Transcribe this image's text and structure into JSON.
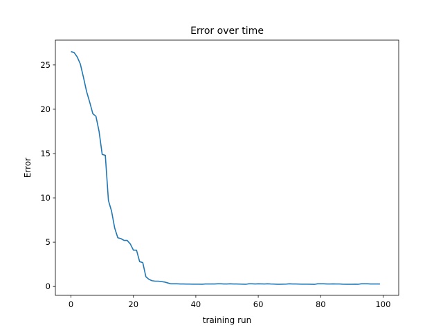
{
  "chart_data": {
    "type": "line",
    "title": "Error over time",
    "xlabel": "training run",
    "ylabel": "Error",
    "xlim": [
      -5,
      105
    ],
    "ylim": [
      -1.0,
      27.8
    ],
    "xticks": [
      0,
      20,
      40,
      60,
      80,
      100
    ],
    "yticks": [
      0,
      5,
      10,
      15,
      20,
      25
    ],
    "grid": false,
    "line_color": "#1f77b4",
    "series": [
      {
        "x": [
          0,
          1,
          2,
          3,
          4,
          5,
          6,
          7,
          8,
          9,
          10,
          11,
          12,
          13,
          14,
          15,
          16,
          17,
          18,
          19,
          20,
          21,
          22,
          23,
          24,
          25,
          26,
          27,
          28,
          29,
          30,
          31,
          32,
          33,
          34,
          35,
          36,
          37,
          38,
          39,
          40,
          41,
          42,
          43,
          44,
          45,
          46,
          47,
          48,
          49,
          50,
          51,
          52,
          53,
          54,
          55,
          56,
          57,
          58,
          59,
          60,
          61,
          62,
          63,
          64,
          65,
          66,
          67,
          68,
          69,
          70,
          71,
          72,
          73,
          74,
          75,
          76,
          77,
          78,
          79,
          80,
          81,
          82,
          83,
          84,
          85,
          86,
          87,
          88,
          89,
          90,
          91,
          92,
          93,
          94,
          95,
          96,
          97,
          98,
          99
        ],
        "y": [
          26.5,
          26.4,
          25.9,
          25.1,
          23.6,
          22.0,
          20.8,
          19.5,
          19.2,
          17.5,
          14.9,
          14.8,
          9.7,
          8.5,
          6.6,
          5.5,
          5.4,
          5.2,
          5.2,
          4.8,
          4.1,
          4.1,
          2.8,
          2.7,
          1.1,
          0.8,
          0.65,
          0.6,
          0.6,
          0.55,
          0.5,
          0.4,
          0.3,
          0.3,
          0.3,
          0.28,
          0.28,
          0.27,
          0.27,
          0.26,
          0.26,
          0.26,
          0.25,
          0.28,
          0.28,
          0.28,
          0.28,
          0.3,
          0.3,
          0.28,
          0.28,
          0.3,
          0.28,
          0.28,
          0.27,
          0.26,
          0.25,
          0.3,
          0.3,
          0.28,
          0.3,
          0.29,
          0.28,
          0.3,
          0.28,
          0.27,
          0.25,
          0.25,
          0.26,
          0.27,
          0.3,
          0.28,
          0.28,
          0.27,
          0.26,
          0.26,
          0.26,
          0.25,
          0.24,
          0.3,
          0.3,
          0.3,
          0.28,
          0.28,
          0.29,
          0.28,
          0.28,
          0.26,
          0.25,
          0.25,
          0.25,
          0.26,
          0.25,
          0.3,
          0.3,
          0.3,
          0.28,
          0.28,
          0.28,
          0.28
        ]
      }
    ]
  }
}
